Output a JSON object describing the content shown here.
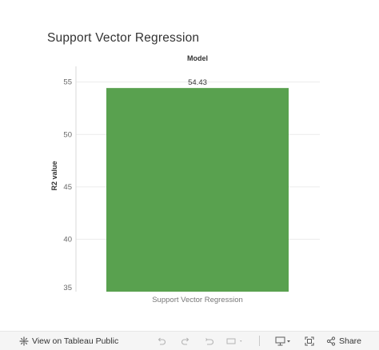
{
  "page": {
    "title": "Support Vector Regression"
  },
  "chart_data": {
    "type": "bar",
    "header": "Model",
    "categories": [
      "Support Vector Regression"
    ],
    "values": [
      54.43
    ],
    "data_labels": [
      "54.43"
    ],
    "xlabel": "",
    "ylabel": "R2 value",
    "ylim": [
      35,
      56.5
    ],
    "yticks": [
      "35",
      "40",
      "45",
      "50",
      "55"
    ],
    "grid": true,
    "bar_color": "#59a14f"
  },
  "toolbar": {
    "view_label": "View on Tableau Public",
    "share_label": "Share",
    "icons": {
      "tableau": "tableau-logo-icon",
      "undo": "undo-icon",
      "redo": "redo-icon",
      "revert": "revert-icon",
      "pause": "pause-icon",
      "download": "download-icon",
      "fullscreen": "fullscreen-icon",
      "share": "share-icon"
    }
  }
}
